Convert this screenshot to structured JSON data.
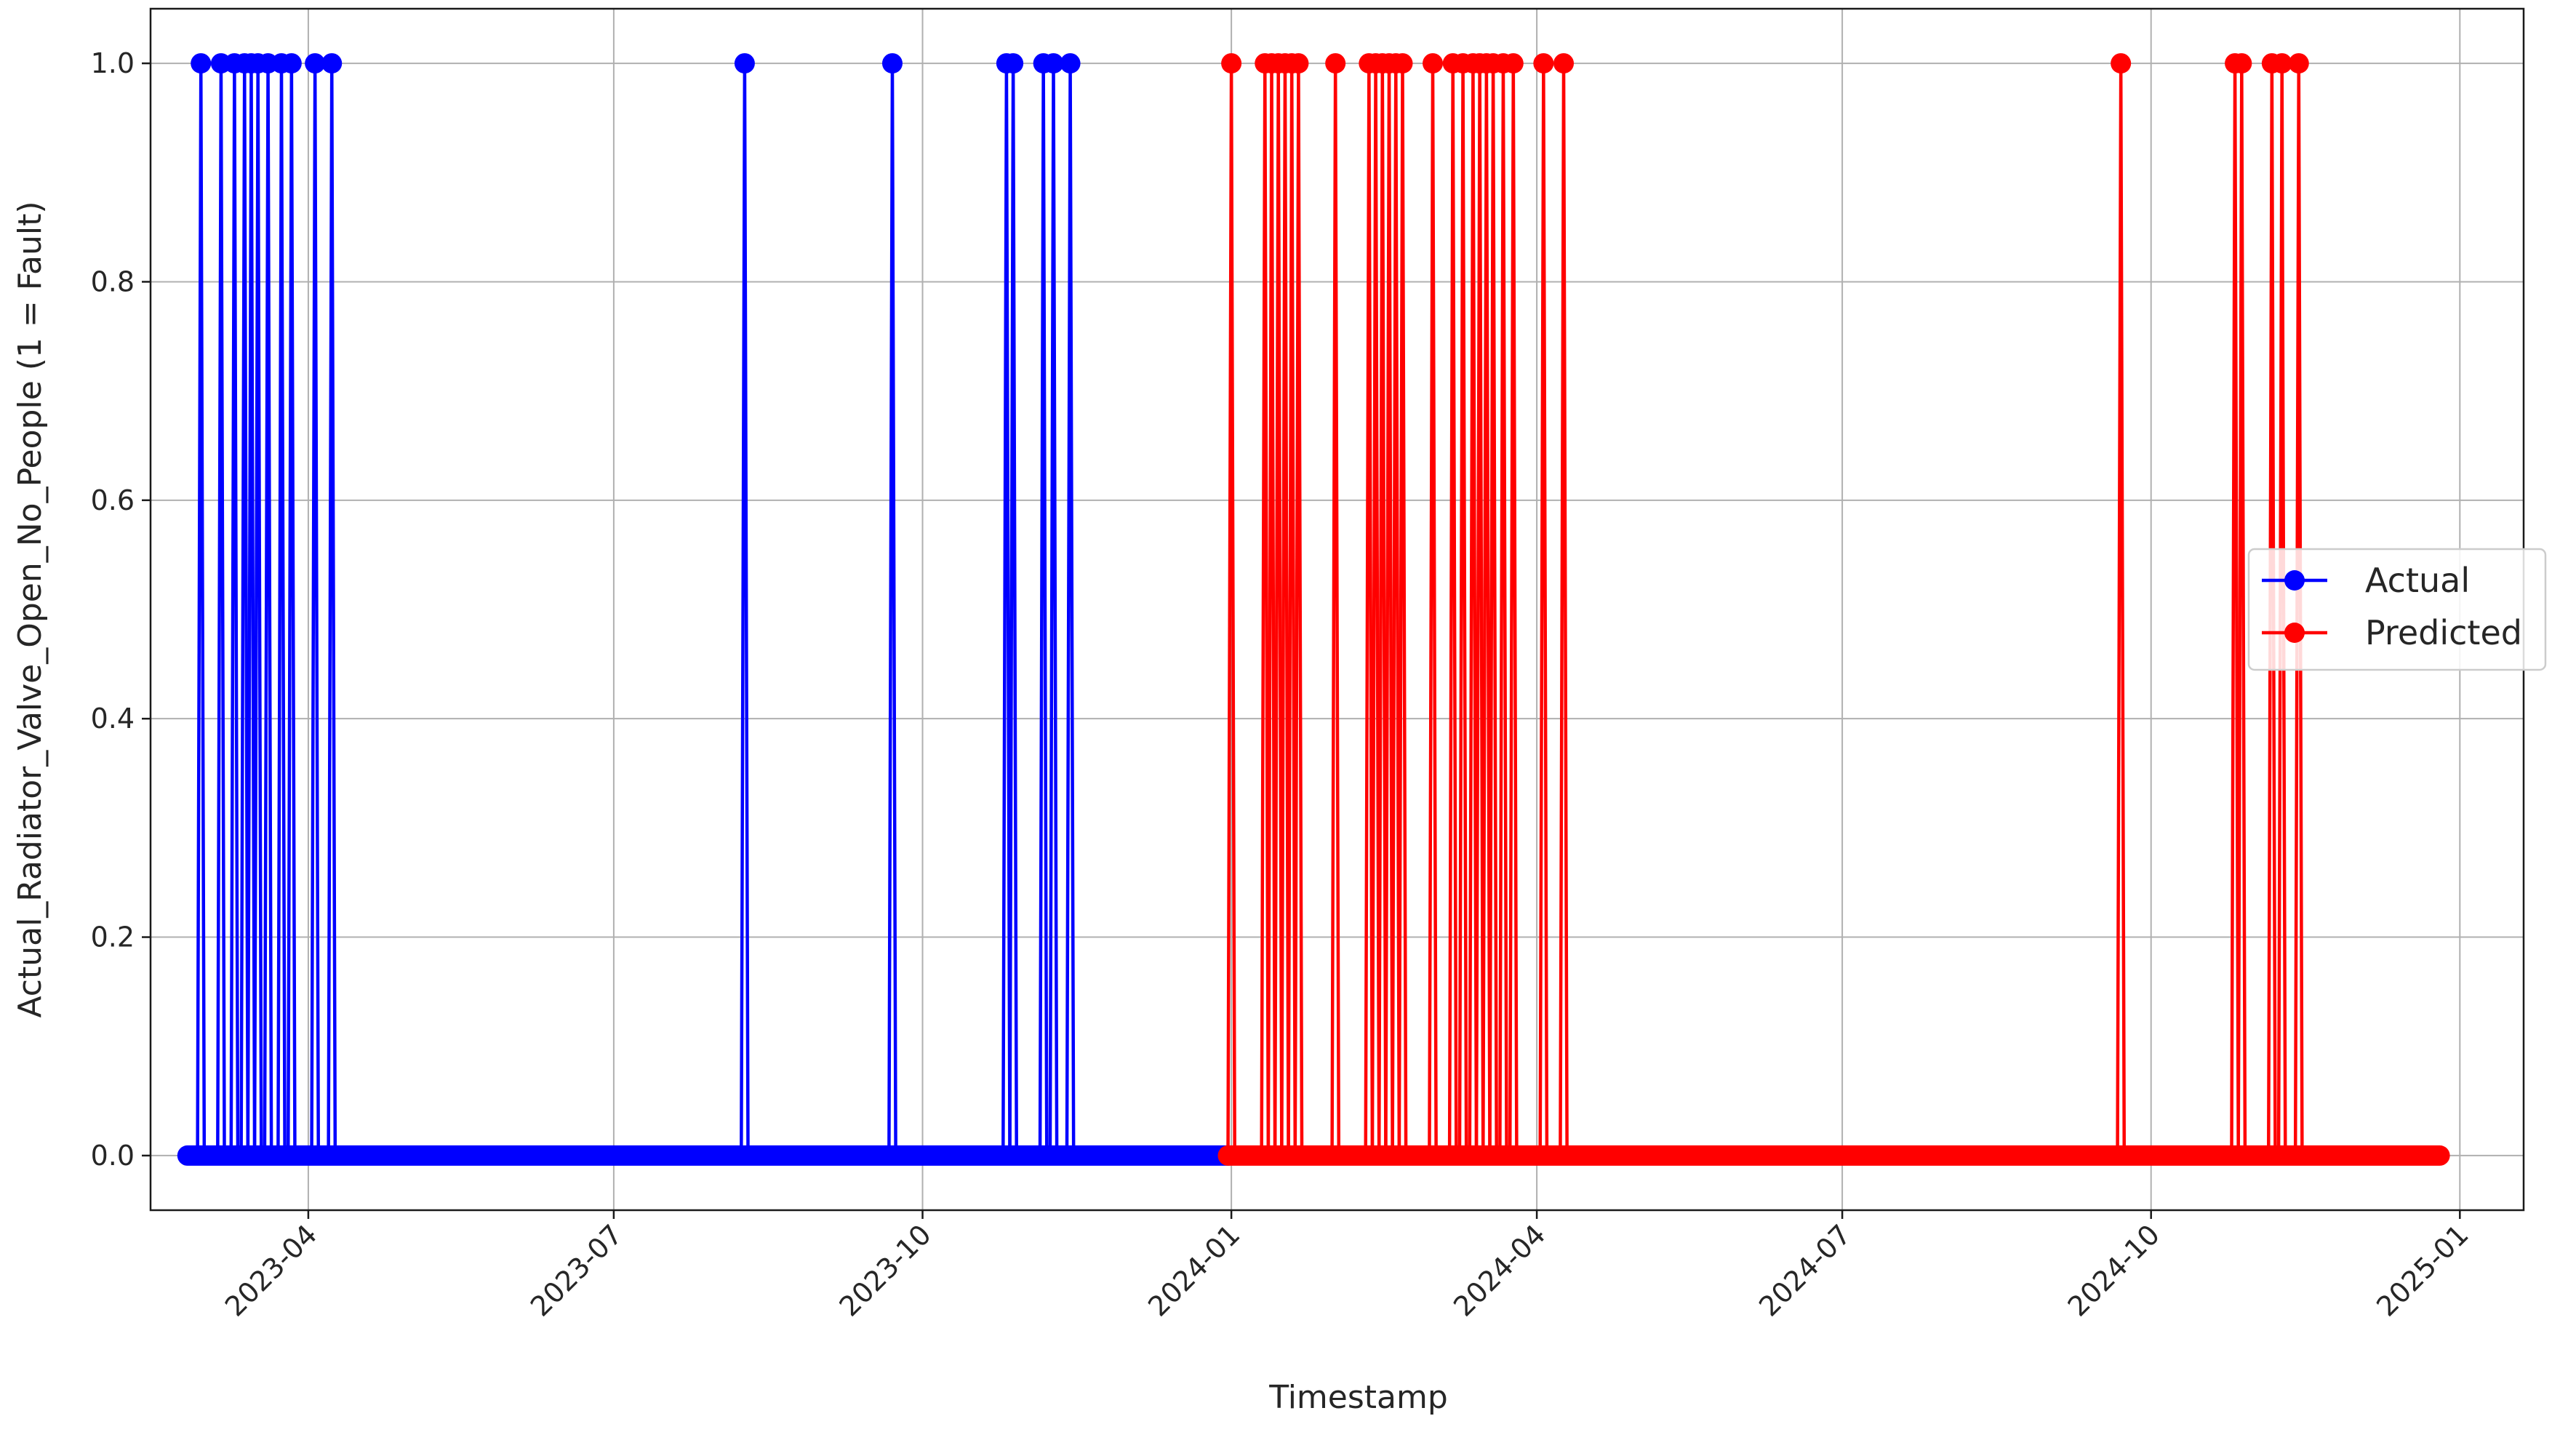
{
  "chart_data": {
    "type": "line",
    "title": "",
    "xlabel": "Timestamp",
    "ylabel": "Actual_Radiator_Valve_Open_No_People (1 = Fault)",
    "xlim": [
      "2023-02-13",
      "2025-01-20"
    ],
    "ylim": [
      -0.05,
      1.05
    ],
    "x_ticks": [
      "2023-04",
      "2023-07",
      "2023-10",
      "2024-01",
      "2024-04",
      "2024-07",
      "2024-10",
      "2025-01"
    ],
    "y_ticks": [
      "0.0",
      "0.2",
      "0.4",
      "0.6",
      "0.8",
      "1.0"
    ],
    "grid": true,
    "legend_position": "center-right",
    "series": [
      {
        "name": "Actual",
        "color": "#0000ff",
        "range": [
          "2023-02-24",
          "2023-12-31"
        ],
        "baseline": 0,
        "fault_dates": [
          "2023-02-28",
          "2023-03-06",
          "2023-03-10",
          "2023-03-13",
          "2023-03-15",
          "2023-03-17",
          "2023-03-20",
          "2023-03-24",
          "2023-03-27",
          "2023-04-03",
          "2023-04-08",
          "2023-08-09",
          "2023-09-22",
          "2023-10-26",
          "2023-10-28",
          "2023-11-06",
          "2023-11-09",
          "2023-11-14"
        ]
      },
      {
        "name": "Predicted",
        "color": "#ff0000",
        "range": [
          "2023-12-31",
          "2024-12-26"
        ],
        "baseline": 0,
        "fault_dates": [
          "2024-01-01",
          "2024-01-11",
          "2024-01-13",
          "2024-01-15",
          "2024-01-17",
          "2024-01-19",
          "2024-01-21",
          "2024-02-01",
          "2024-02-11",
          "2024-02-13",
          "2024-02-15",
          "2024-02-17",
          "2024-02-19",
          "2024-02-21",
          "2024-03-01",
          "2024-03-07",
          "2024-03-10",
          "2024-03-13",
          "2024-03-15",
          "2024-03-17",
          "2024-03-19",
          "2024-03-22",
          "2024-03-25",
          "2024-04-03",
          "2024-04-09",
          "2024-09-22",
          "2024-10-26",
          "2024-10-28",
          "2024-11-06",
          "2024-11-09",
          "2024-11-14"
        ]
      }
    ]
  }
}
